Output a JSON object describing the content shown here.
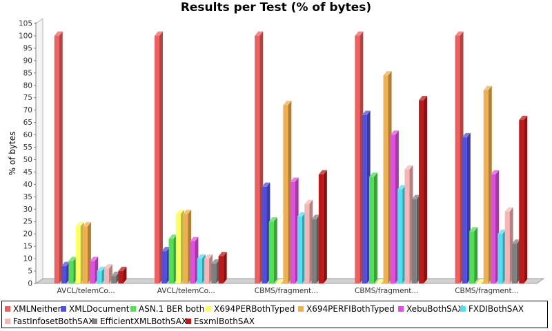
{
  "chart_data": {
    "type": "bar",
    "title": "Results per Test (% of bytes)",
    "xlabel": "",
    "ylabel": "% of bytes",
    "ylim": [
      0,
      105
    ],
    "ytick_step": 5,
    "grid": false,
    "legend_position": "bottom",
    "categories": [
      "AVCL/telemCo...",
      "AVCL/telemCo...",
      "CBMS/fragment...",
      "CBMS/fragment...",
      "CBMS/fragment..."
    ],
    "series": [
      {
        "name": "XMLNeither",
        "color": "#f06060",
        "values": [
          100,
          100,
          100,
          100,
          100
        ]
      },
      {
        "name": "XMLDocument",
        "color": "#5050e0",
        "values": [
          7,
          13,
          39,
          68,
          59
        ]
      },
      {
        "name": "ASN.1 BER both",
        "color": "#50e050",
        "values": [
          9,
          18,
          25,
          43,
          21
        ]
      },
      {
        "name": "X694PERBothTyped",
        "color": "#ffff60",
        "values": [
          23,
          28,
          0,
          0,
          0
        ]
      },
      {
        "name": "X694PERFIBothTyped",
        "color": "#f0b050",
        "values": [
          23,
          28,
          72,
          84,
          78
        ]
      },
      {
        "name": "XebuBothSAX",
        "color": "#e050e0",
        "values": [
          9,
          17,
          41,
          60,
          44
        ]
      },
      {
        "name": "FXDIBothSAX",
        "color": "#50e0f0",
        "values": [
          5,
          10,
          27,
          38,
          20
        ]
      },
      {
        "name": "FastInfosetBothSAX",
        "color": "#f7b5b5",
        "values": [
          6,
          10,
          32,
          46,
          29
        ]
      },
      {
        "name": "EfficientXMLBothSAX",
        "color": "#808080",
        "values": [
          3,
          8,
          26,
          34,
          16
        ]
      },
      {
        "name": "EsxmlBothSAX",
        "color": "#c01818",
        "values": [
          5,
          11,
          44,
          74,
          66
        ]
      }
    ]
  }
}
